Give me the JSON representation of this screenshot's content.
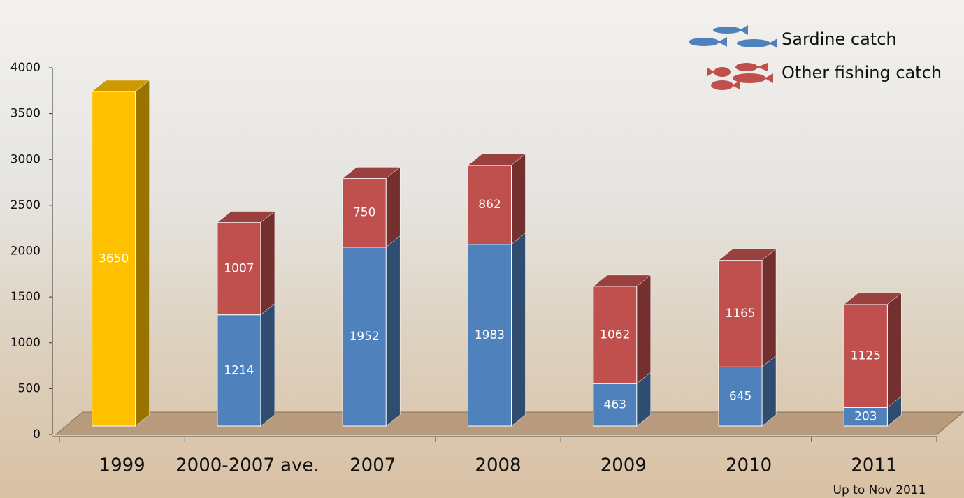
{
  "chart_data": {
    "type": "stacked-bar-3d",
    "categories": [
      "1999",
      "2000-2007 ave.",
      "2007",
      "2008",
      "2009",
      "2010",
      "2011"
    ],
    "series": [
      {
        "color": "#ffc000",
        "values": [
          3650,
          null,
          null,
          null,
          null,
          null,
          null
        ]
      },
      {
        "name": "Sardine catch",
        "color": "#4f81bd",
        "values": [
          null,
          1214,
          1952,
          1983,
          463,
          645,
          203
        ]
      },
      {
        "name": "Other fishing catch",
        "color": "#c0504d",
        "values": [
          null,
          1007,
          750,
          862,
          1062,
          1165,
          1125
        ]
      }
    ],
    "annotation": "Up to Nov 2011",
    "ylim": [
      0,
      4000
    ],
    "yticks": [
      0,
      500,
      1000,
      1500,
      2000,
      2500,
      3000,
      3500,
      4000
    ],
    "grid": false
  }
}
